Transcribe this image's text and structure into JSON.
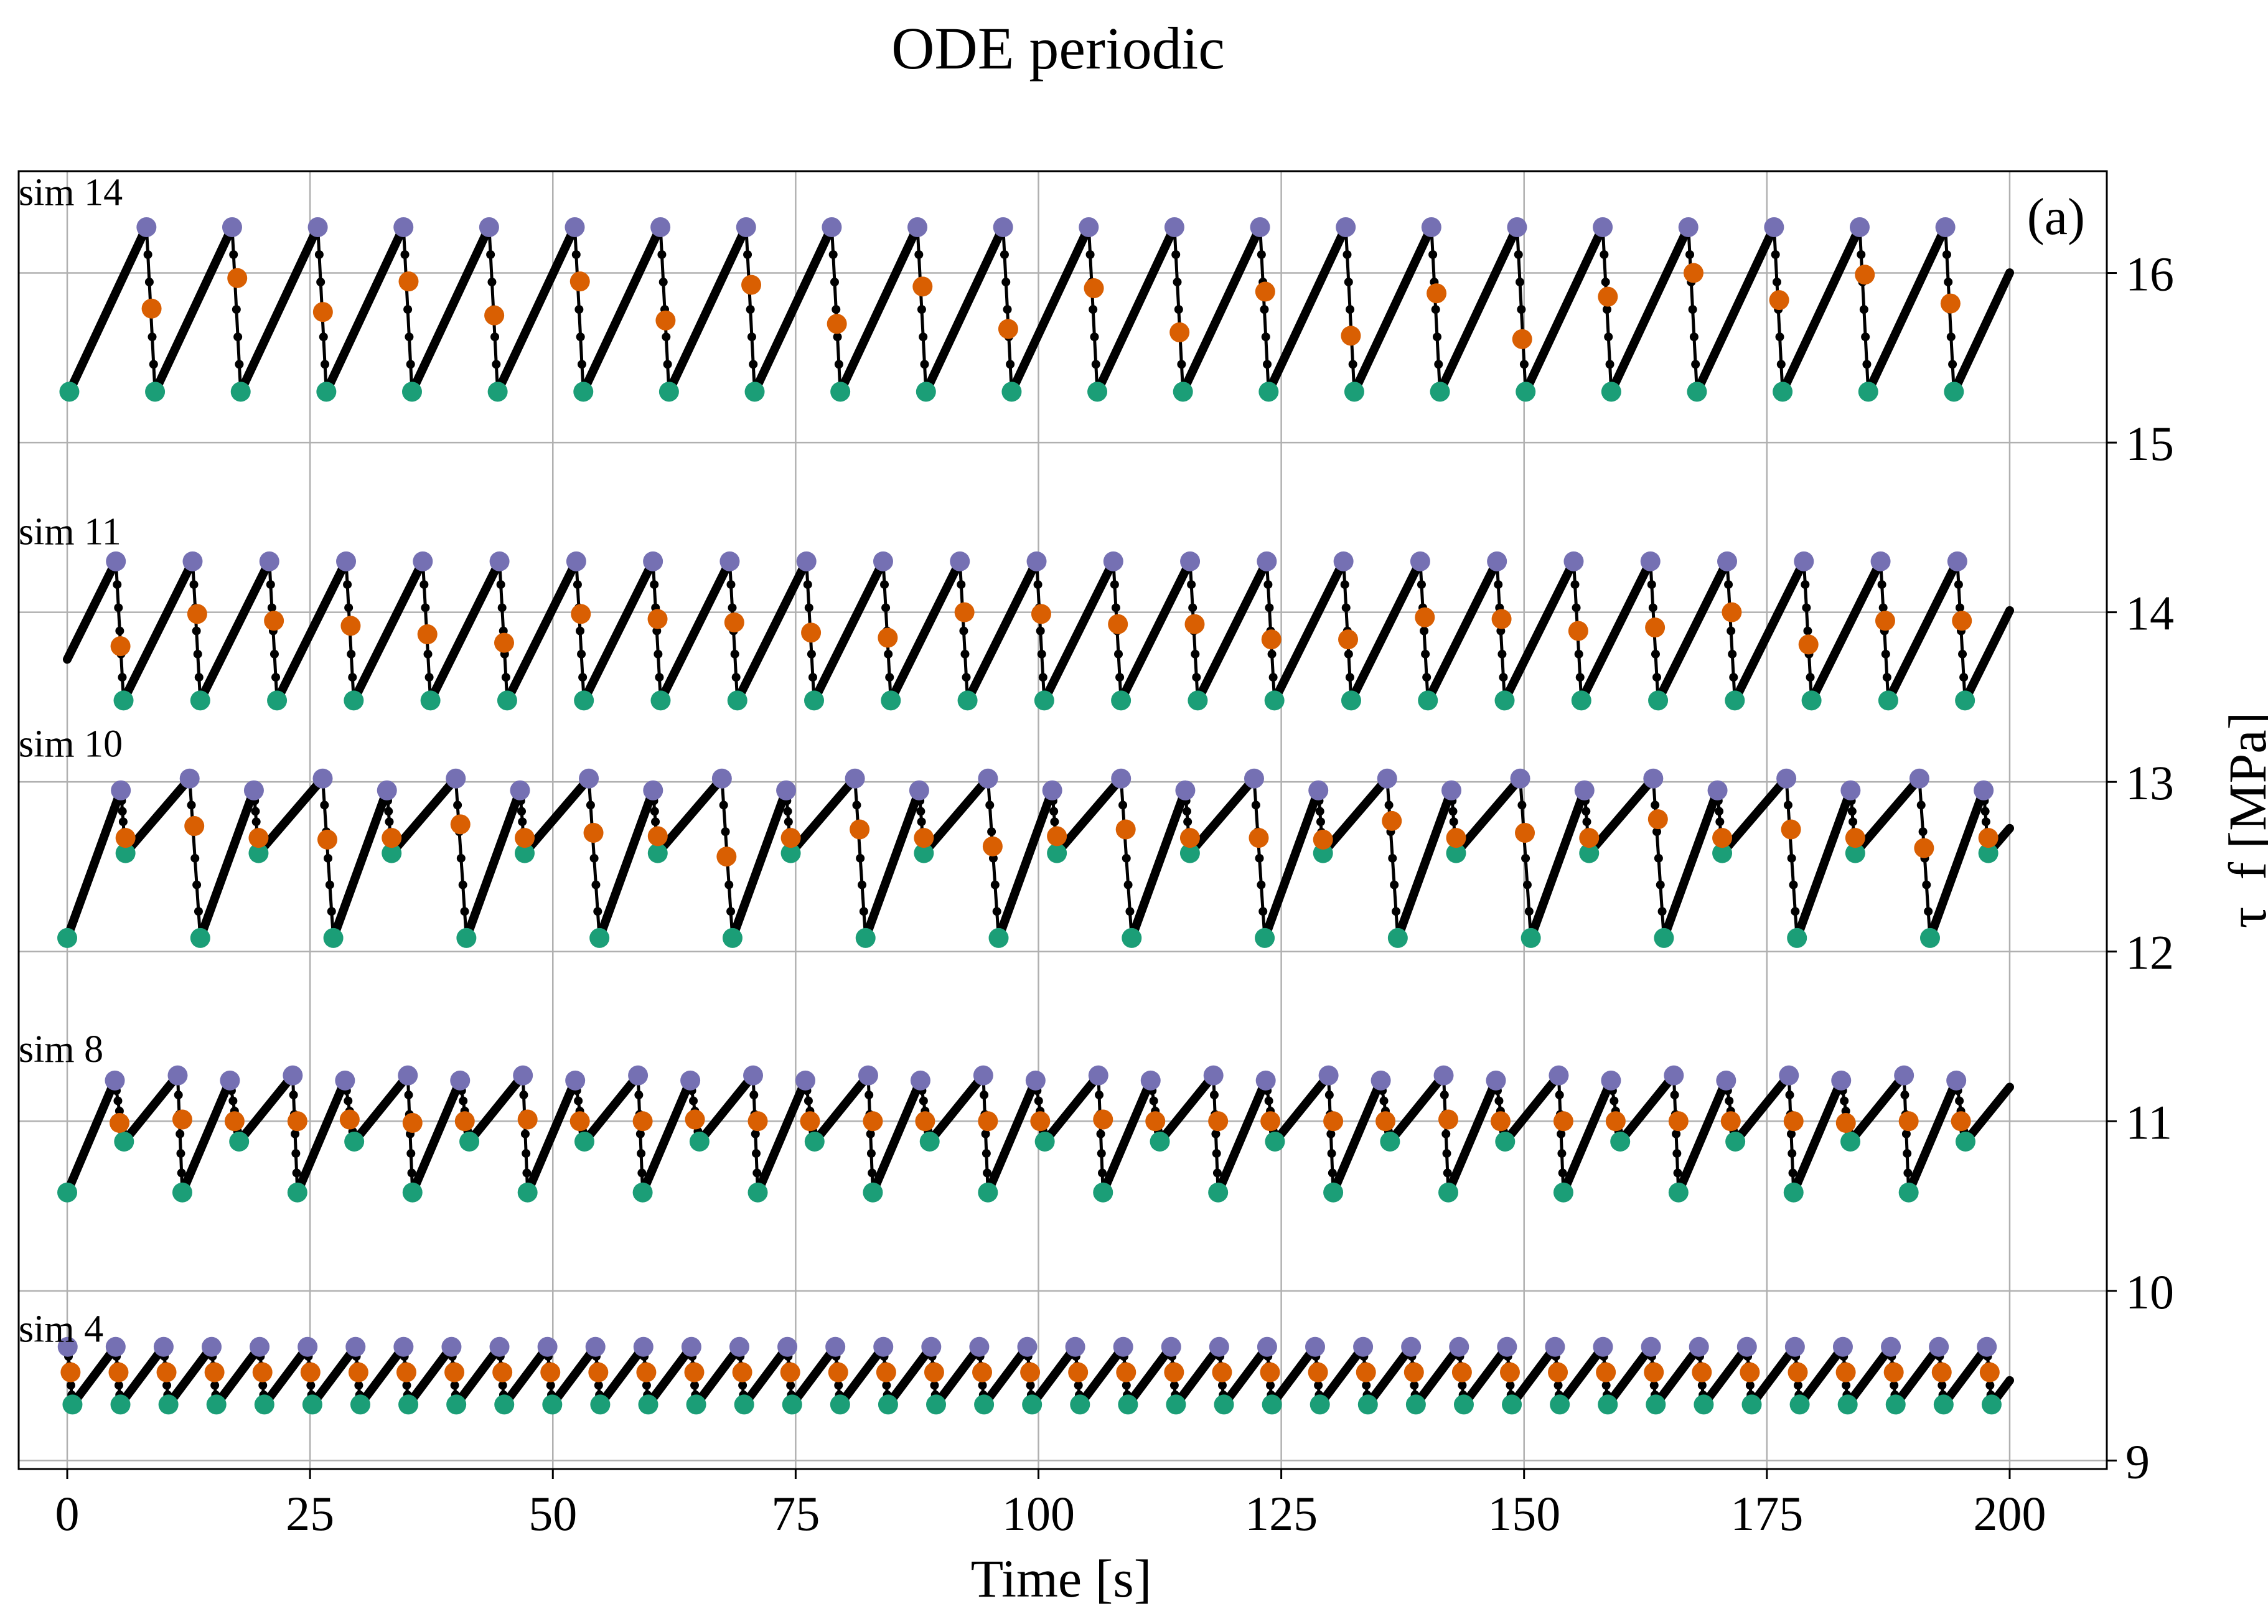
{
  "chart_data": {
    "type": "line",
    "title": "ODE periodic",
    "xlabel": "Time [s]",
    "ylabel": "τ_f [MPa]",
    "panel_label": "(a)",
    "xlim": [
      -5,
      210
    ],
    "ylim": [
      8.95,
      16.6
    ],
    "x_ticks": [
      0,
      25,
      50,
      75,
      100,
      125,
      150,
      175,
      200
    ],
    "y_ticks": [
      9,
      10,
      11,
      12,
      13,
      14,
      15,
      16
    ],
    "y_axis_position": "right",
    "grid": true,
    "colors": {
      "line": "#000000",
      "max": "#7570b3",
      "mid": "#d95f02",
      "min": "#1b9e77"
    },
    "series": [
      {
        "name": "sim 14",
        "label_y": 16.4,
        "t0": -8.6,
        "period": 8.82,
        "phase": 0.1,
        "max": 16.27,
        "min": 15.3,
        "mid_values": [
          15.79,
          15.97,
          15.77,
          15.95,
          15.75,
          15.95,
          15.72,
          15.93,
          15.7,
          15.92,
          15.67,
          15.91,
          15.65,
          15.89,
          15.63,
          15.88,
          15.61,
          15.86,
          16.0,
          15.84,
          15.99,
          15.82,
          15.98
        ]
      },
      {
        "name": "sim 11",
        "label_y": 14.4,
        "t0": -2.1,
        "period": 7.9,
        "phase": 0.0,
        "max": 14.3,
        "min": 13.48,
        "mid_values": [
          13.8,
          13.99,
          13.95,
          13.92,
          13.87,
          13.82,
          13.99,
          13.96,
          13.94,
          13.88,
          13.85,
          14.0,
          13.99,
          13.93,
          13.93,
          13.84,
          13.84,
          13.97,
          13.96,
          13.89,
          13.91,
          14.0,
          13.81,
          13.95,
          13.95
        ]
      },
      {
        "name": "sim 10",
        "label_y": 13.15,
        "t0": -13.7,
        "period": 13.7,
        "phase": 0.0,
        "double": {
          "dt": 6.0,
          "max1": 12.95,
          "min1": 12.58,
          "max2": 13.02,
          "min2": 12.08
        },
        "mid_values": [
          12.67,
          12.74,
          12.67,
          12.66,
          12.67,
          12.75,
          12.67,
          12.7,
          12.68,
          12.56,
          12.67,
          12.72,
          12.67,
          12.62,
          12.68,
          12.72,
          12.67,
          12.67,
          12.66,
          12.77,
          12.67,
          12.7,
          12.67,
          12.78,
          12.67,
          12.72,
          12.67,
          12.61,
          12.67,
          12.74
        ]
      },
      {
        "name": "sim 8",
        "label_y": 11.35,
        "t0": -6.0,
        "period": 11.85,
        "phase": 0.0,
        "double": {
          "dt": 6.0,
          "max1": 11.27,
          "min1": 10.58,
          "max2": 11.24,
          "min2": 10.88
        },
        "mid_values": [
          10.99,
          11.01,
          11.0,
          11.0,
          11.01,
          10.99,
          11.0,
          11.01,
          11.0,
          11.0,
          11.01,
          11.0,
          11.0,
          11.0,
          11.0,
          11.0,
          11.0,
          11.01,
          11.0,
          11.0,
          11.0,
          11.0,
          11.0,
          11.01,
          11.0,
          11.0,
          11.0,
          11.0,
          11.0,
          11.0,
          10.99,
          11.0,
          11.0,
          10.99
        ]
      },
      {
        "name": "sim 4",
        "label_y": 9.7,
        "t0": -4.4,
        "period": 4.94,
        "phase": 0.0,
        "max": 9.67,
        "min": 9.33,
        "mid_values": [
          9.52,
          9.52,
          9.52,
          9.52,
          9.52,
          9.52,
          9.52,
          9.52,
          9.52,
          9.52,
          9.52,
          9.52,
          9.52,
          9.52,
          9.52,
          9.52,
          9.52,
          9.52,
          9.52,
          9.52,
          9.52,
          9.52,
          9.52,
          9.52,
          9.52,
          9.52,
          9.52,
          9.52,
          9.52,
          9.52,
          9.52,
          9.52,
          9.52,
          9.52,
          9.52,
          9.52,
          9.52,
          9.52,
          9.52,
          9.52,
          9.52
        ]
      }
    ]
  }
}
